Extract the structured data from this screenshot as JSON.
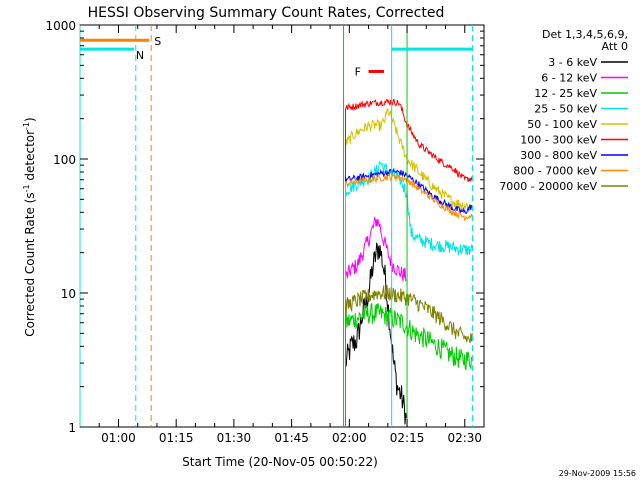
{
  "chart_data": {
    "type": "line",
    "title": "HESSI Observing Summary Count Rates, Corrected",
    "xlabel": "Start Time (20-Nov-05 00:50:22)",
    "ylabel": "Corrected Count Rate (s⁻¹ detector⁻¹)",
    "ylabel_main": "Corrected Count Rate (s",
    "ylabel_sup1": "-1",
    "ylabel_mid": " detector",
    "ylabel_sup2": "-1",
    "ylabel_end": ")",
    "x_axis": {
      "range_minutes_after_0050": [
        0,
        105
      ],
      "ticks": [
        {
          "label": "01:00",
          "min": 10
        },
        {
          "label": "01:15",
          "min": 25
        },
        {
          "label": "01:30",
          "min": 40
        },
        {
          "label": "01:45",
          "min": 55
        },
        {
          "label": "02:00",
          "min": 70
        },
        {
          "label": "02:15",
          "min": 85
        },
        {
          "label": "02:30",
          "min": 100
        }
      ]
    },
    "y_axis": {
      "scale": "log",
      "range": [
        1,
        1000
      ],
      "ticks": [
        {
          "label": "1",
          "value": 1
        },
        {
          "label": "10",
          "value": 10
        },
        {
          "label": "100",
          "value": 100
        },
        {
          "label": "1000",
          "value": 1000
        }
      ]
    },
    "legend": {
      "header1": "Det 1,3,4,5,6,9,",
      "header2": "Att 0",
      "position": "right"
    },
    "series": [
      {
        "name": "3 - 6 keV",
        "color": "#000000",
        "points": [
          [
            69,
            3
          ],
          [
            70.5,
            4
          ],
          [
            72,
            4.5
          ],
          [
            73.5,
            7
          ],
          [
            75,
            10
          ],
          [
            76,
            15
          ],
          [
            77,
            20
          ],
          [
            77.8,
            22
          ],
          [
            78.5,
            18
          ],
          [
            79.5,
            12
          ],
          [
            80.5,
            6
          ],
          [
            81.5,
            3
          ],
          [
            82.5,
            2
          ],
          [
            83.5,
            1.7
          ],
          [
            84.5,
            1.3
          ],
          [
            85,
            1
          ]
        ],
        "noise": 0.1
      },
      {
        "name": "6 - 12 keV",
        "color": "#ff00ff",
        "points": [
          [
            69,
            13
          ],
          [
            70.5,
            15
          ],
          [
            72,
            16
          ],
          [
            73.5,
            20
          ],
          [
            75,
            25
          ],
          [
            76,
            30
          ],
          [
            77,
            35
          ],
          [
            77.8,
            33
          ],
          [
            78.5,
            27
          ],
          [
            79.5,
            22
          ],
          [
            80.5,
            18
          ],
          [
            81.5,
            16
          ],
          [
            82.5,
            15
          ],
          [
            83.5,
            14
          ],
          [
            84.5,
            13.5
          ],
          [
            85,
            13
          ]
        ],
        "noise": 0.06
      },
      {
        "name": "12 - 25 keV",
        "color": "#00cc00",
        "points": [
          [
            69,
            6
          ],
          [
            72,
            6.5
          ],
          [
            75,
            7
          ],
          [
            78,
            7
          ],
          [
            81,
            6.5
          ],
          [
            84,
            6
          ],
          [
            87,
            5
          ],
          [
            90,
            4.5
          ],
          [
            93,
            4
          ],
          [
            96,
            3.5
          ],
          [
            99,
            3.2
          ],
          [
            102,
            3.2
          ]
        ],
        "noise": 0.08
      },
      {
        "name": "25 - 50 keV",
        "color": "#00e5e5",
        "points": [
          [
            69,
            58
          ],
          [
            71,
            63
          ],
          [
            73,
            68
          ],
          [
            75,
            72
          ],
          [
            77,
            80
          ],
          [
            78,
            95
          ],
          [
            79,
            85
          ],
          [
            81,
            78
          ],
          [
            83,
            72
          ],
          [
            85,
            55
          ],
          [
            86,
            28
          ],
          [
            88,
            25
          ],
          [
            92,
            23
          ],
          [
            96,
            22
          ],
          [
            100,
            21
          ],
          [
            102,
            21
          ]
        ],
        "noise": 0.05
      },
      {
        "name": "50 - 100 keV",
        "color": "#d4c000",
        "points": [
          [
            69,
            130
          ],
          [
            71,
            150
          ],
          [
            73,
            165
          ],
          [
            75,
            175
          ],
          [
            77,
            180
          ],
          [
            78,
            175
          ],
          [
            79,
            190
          ],
          [
            80,
            230
          ],
          [
            81,
            200
          ],
          [
            83,
            140
          ],
          [
            85,
            100
          ],
          [
            88,
            80
          ],
          [
            91,
            65
          ],
          [
            94,
            55
          ],
          [
            97,
            48
          ],
          [
            100,
            45
          ],
          [
            102,
            45
          ]
        ],
        "noise": 0.04
      },
      {
        "name": "100 - 300 keV",
        "color": "#ff0000",
        "points": [
          [
            69,
            240
          ],
          [
            72,
            250
          ],
          [
            75,
            260
          ],
          [
            78,
            265
          ],
          [
            81,
            268
          ],
          [
            83,
            262
          ],
          [
            85,
            180
          ],
          [
            88,
            130
          ],
          [
            91,
            110
          ],
          [
            94,
            95
          ],
          [
            97,
            85
          ],
          [
            100,
            70
          ],
          [
            102,
            72
          ]
        ],
        "noise": 0.025
      },
      {
        "name": "300 - 800 keV",
        "color": "#0000ff",
        "points": [
          [
            69,
            70
          ],
          [
            72,
            72
          ],
          [
            75,
            75
          ],
          [
            78,
            78
          ],
          [
            81,
            80
          ],
          [
            83,
            80
          ],
          [
            85,
            75
          ],
          [
            88,
            65
          ],
          [
            91,
            55
          ],
          [
            94,
            48
          ],
          [
            97,
            43
          ],
          [
            100,
            40
          ],
          [
            102,
            45
          ]
        ],
        "noise": 0.025
      },
      {
        "name": "800 - 7000 keV",
        "color": "#ff8c00",
        "points": [
          [
            69,
            65
          ],
          [
            72,
            68
          ],
          [
            75,
            70
          ],
          [
            78,
            72
          ],
          [
            81,
            74
          ],
          [
            83,
            73
          ],
          [
            85,
            70
          ],
          [
            88,
            60
          ],
          [
            91,
            52
          ],
          [
            94,
            45
          ],
          [
            97,
            40
          ],
          [
            100,
            37
          ],
          [
            102,
            38
          ]
        ],
        "noise": 0.025
      },
      {
        "name": "7000 - 20000 keV",
        "color": "#808000",
        "points": [
          [
            69,
            8
          ],
          [
            71,
            8.5
          ],
          [
            73,
            9
          ],
          [
            75,
            9.5
          ],
          [
            77,
            10
          ],
          [
            80,
            10
          ],
          [
            83,
            9.5
          ],
          [
            86,
            9
          ],
          [
            89,
            8
          ],
          [
            92,
            7
          ],
          [
            95,
            6
          ],
          [
            98,
            5
          ],
          [
            101,
            4.5
          ],
          [
            102,
            4.5
          ]
        ],
        "noise": 0.06
      }
    ],
    "annotations": {
      "S": {
        "label": "S",
        "color": "#ff8000",
        "x_start": 0,
        "x_end": 18,
        "y": 770
      },
      "N": {
        "label": "N",
        "color": "#00e5e5",
        "x_start": 0,
        "x_end": 14,
        "y": 660
      },
      "F": {
        "label": "F",
        "color": "#ff0000",
        "x_start": 75,
        "x_end": 79,
        "y": 450
      },
      "cyan_bar_right": {
        "x_start": 81,
        "x_end": 102,
        "y": 660
      },
      "vlines_dashed": [
        {
          "x": 14.5,
          "color": "#00e5e5"
        },
        {
          "x": 18.5,
          "color": "#ff8000"
        },
        {
          "x": 102,
          "color": "#00e5e5"
        }
      ],
      "vlines_solid": [
        {
          "x": 0,
          "color": "#00e5e5"
        },
        {
          "x": 68.5,
          "color": "#00cc00"
        },
        {
          "x": 81,
          "color": "#00e5e5"
        },
        {
          "x": 85,
          "color": "#00cc00"
        }
      ]
    },
    "timestamp": "29-Nov-2009 15:56"
  }
}
